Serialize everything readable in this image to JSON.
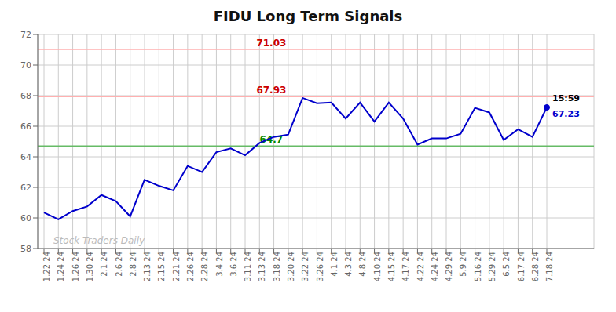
{
  "chart_data": {
    "type": "line",
    "title": "FIDU Long Term Signals",
    "categories": [
      "1.22.24",
      "1.24.24",
      "1.26.24",
      "1.30.24",
      "2.1.24",
      "2.6.24",
      "2.8.24",
      "2.13.24",
      "2.15.24",
      "2.21.24",
      "2.26.24",
      "2.28.24",
      "3.4.24",
      "3.6.24",
      "3.11.24",
      "3.13.24",
      "3.18.24",
      "3.20.24",
      "3.22.24",
      "3.26.24",
      "4.1.24",
      "4.3.24",
      "4.8.24",
      "4.10.24",
      "4.15.24",
      "4.17.24",
      "4.22.24",
      "4.24.24",
      "4.29.24",
      "5.9.24",
      "5.16.24",
      "5.29.24",
      "6.5.24",
      "6.17.24",
      "6.28.24",
      "7.18.24"
    ],
    "values": [
      60.35,
      59.9,
      60.45,
      60.75,
      61.5,
      61.1,
      60.1,
      62.5,
      62.1,
      61.8,
      63.4,
      63.0,
      64.3,
      64.55,
      64.1,
      64.9,
      65.3,
      65.45,
      67.85,
      67.5,
      67.55,
      66.5,
      67.55,
      66.3,
      67.55,
      66.5,
      64.8,
      65.2,
      65.2,
      65.5,
      67.2,
      66.9,
      65.1,
      65.8,
      65.3,
      67.23
    ],
    "color": "#0000CC",
    "ylim": [
      58,
      72
    ],
    "yticks": [
      58,
      60,
      62,
      64,
      66,
      68,
      70,
      72
    ],
    "grid": true,
    "hlines": [
      {
        "value": 71.03,
        "label": "71.03",
        "color": "#FFB0B0",
        "label_color": "#CC0000"
      },
      {
        "value": 67.93,
        "label": "67.93",
        "color": "#FFB0B0",
        "label_color": "#CC0000"
      },
      {
        "value": 64.7,
        "label": "64.7",
        "color": "#66BB66",
        "label_color": "#008800"
      }
    ],
    "last_point_labels": [
      "15:59",
      "67.23"
    ],
    "watermark": "Stock Traders Daily"
  }
}
